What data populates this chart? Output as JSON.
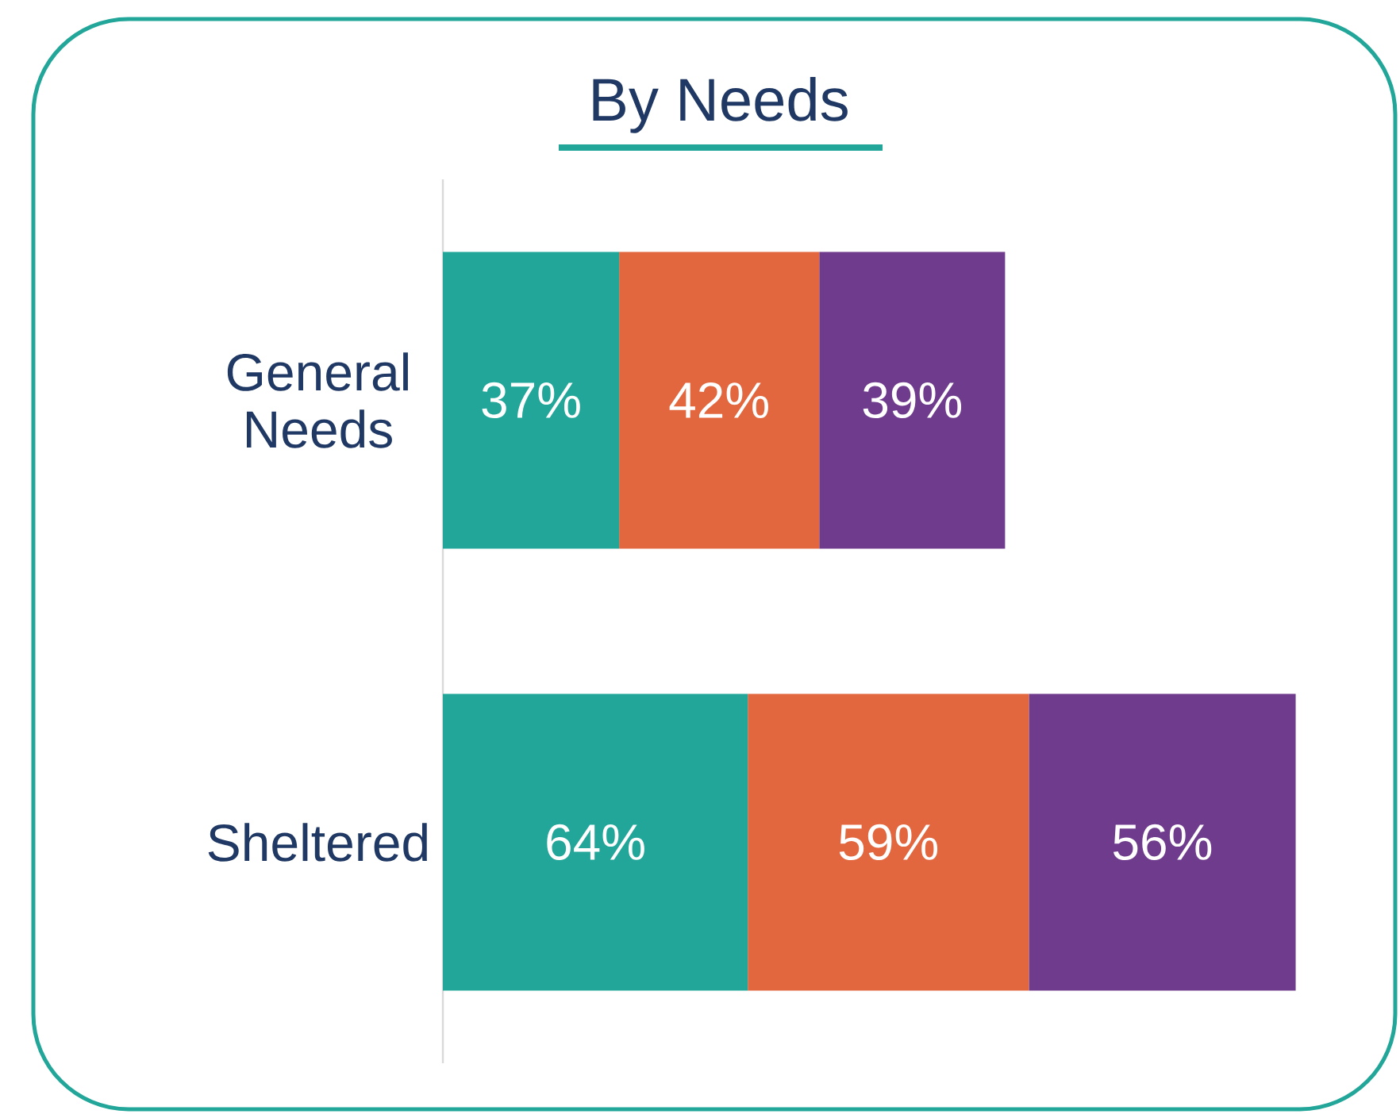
{
  "chart_data": {
    "type": "bar",
    "orientation": "horizontal",
    "stacked": true,
    "title": "By Needs",
    "categories": [
      "General Needs",
      "Sheltered"
    ],
    "series": [
      {
        "color": "#22a699",
        "values": [
          37,
          64
        ],
        "value_labels": [
          "37%",
          "64%"
        ]
      },
      {
        "color": "#e2673f",
        "values": [
          42,
          59
        ],
        "value_labels": [
          "42%",
          "59%"
        ]
      },
      {
        "color": "#6f3b8c",
        "values": [
          39,
          56
        ],
        "value_labels": [
          "39%",
          "56%"
        ]
      }
    ]
  }
}
